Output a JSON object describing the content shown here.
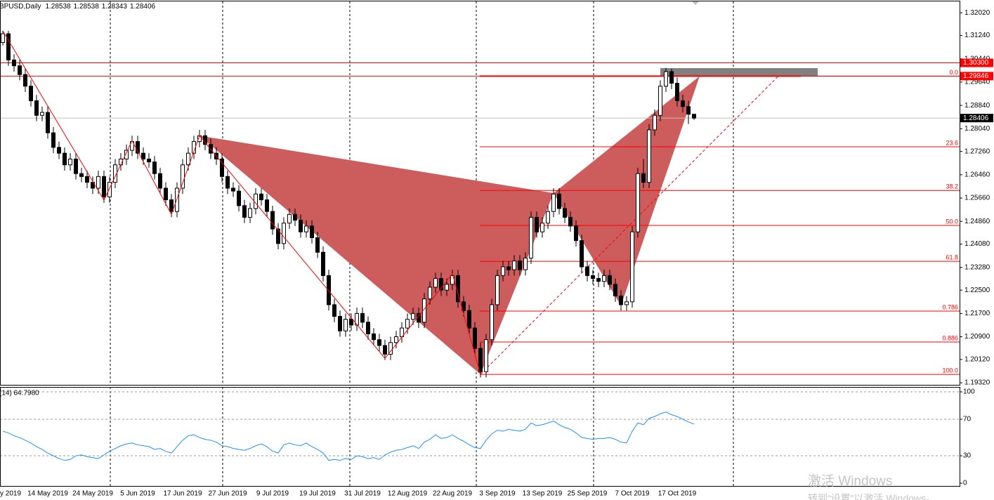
{
  "chart_data": {
    "type": "candlestick",
    "symbol": "BPUSD,Daily",
    "categories": [
      "y 2019",
      null,
      null,
      null,
      null,
      null,
      null,
      null,
      "14 May 2019",
      null,
      null,
      null,
      null,
      null,
      null,
      null,
      "24 May 2019",
      null,
      null,
      null,
      null,
      null,
      null,
      null,
      "5 Jun 2019",
      null,
      null,
      null,
      null,
      null,
      null,
      null,
      "17 Jun 2019",
      null,
      null,
      null,
      null,
      null,
      null,
      null,
      "27 Jun 2019",
      null,
      null,
      null,
      null,
      null,
      null,
      null,
      "9 Jul 2019",
      null,
      null,
      null,
      null,
      null,
      null,
      null,
      "19 Jul 2019",
      null,
      null,
      null,
      null,
      null,
      null,
      null,
      "31 Jul 2019",
      null,
      null,
      null,
      null,
      null,
      null,
      null,
      "12 Aug 2019",
      null,
      null,
      null,
      null,
      null,
      null,
      null,
      "22 Aug 2019",
      null,
      null,
      null,
      null,
      null,
      null,
      null,
      "3 Sep 2019",
      null,
      null,
      null,
      null,
      null,
      null,
      null,
      "13 Sep 2019",
      null,
      null,
      null,
      null,
      null,
      null,
      null,
      "25 Sep 2019",
      null,
      null,
      null,
      null,
      null,
      null,
      null,
      "7 Oct 2019",
      null,
      null,
      null,
      null,
      null,
      null,
      null,
      "17 Oct 2019",
      null,
      null,
      null
    ],
    "open": [
      1.31,
      1.313,
      1.304,
      1.302,
      1.299,
      1.295,
      1.29,
      1.285,
      1.286,
      1.279,
      1.274,
      1.272,
      1.268,
      1.27,
      1.265,
      1.264,
      1.262,
      1.26,
      1.264,
      1.257,
      1.262,
      1.268,
      1.27,
      1.273,
      1.276,
      1.272,
      1.27,
      1.269,
      1.265,
      1.26,
      1.256,
      1.252,
      1.26,
      1.268,
      1.272,
      1.276,
      1.278,
      1.275,
      1.272,
      1.27,
      1.264,
      1.26,
      1.259,
      1.254,
      1.25,
      1.253,
      1.258,
      1.256,
      1.252,
      1.246,
      1.241,
      1.248,
      1.251,
      1.249,
      1.245,
      1.247,
      1.243,
      1.238,
      1.23,
      1.22,
      1.216,
      1.211,
      1.215,
      1.213,
      1.217,
      1.214,
      1.21,
      1.208,
      1.206,
      1.203,
      1.207,
      1.209,
      1.212,
      1.215,
      1.217,
      1.214,
      1.222,
      1.226,
      1.229,
      1.225,
      1.227,
      1.23,
      1.221,
      1.218,
      1.212,
      1.205,
      1.197,
      1.208,
      1.22,
      1.23,
      1.233,
      1.232,
      1.235,
      1.232,
      1.236,
      1.25,
      1.245,
      1.248,
      1.252,
      1.258,
      1.253,
      1.25,
      1.247,
      1.242,
      1.233,
      1.23,
      1.229,
      1.228,
      1.23,
      1.227,
      1.223,
      1.22,
      1.221,
      1.245,
      1.265,
      1.262,
      1.28,
      1.285,
      1.295,
      1.3,
      1.296,
      1.29,
      1.288,
      1.28538
    ],
    "high": [
      1.314,
      1.314,
      1.306,
      1.304,
      1.301,
      1.297,
      1.292,
      1.288,
      1.288,
      1.281,
      1.276,
      1.274,
      1.272,
      1.272,
      1.267,
      1.266,
      1.264,
      1.266,
      1.266,
      1.264,
      1.27,
      1.272,
      1.275,
      1.278,
      1.278,
      1.274,
      1.272,
      1.271,
      1.267,
      1.262,
      1.258,
      1.262,
      1.27,
      1.274,
      1.278,
      1.28,
      1.28,
      1.277,
      1.274,
      1.272,
      1.266,
      1.262,
      1.261,
      1.256,
      1.255,
      1.26,
      1.26,
      1.258,
      1.254,
      1.248,
      1.25,
      1.253,
      1.253,
      1.251,
      1.249,
      1.249,
      1.245,
      1.24,
      1.232,
      1.222,
      1.218,
      1.217,
      1.217,
      1.219,
      1.219,
      1.216,
      1.212,
      1.21,
      1.208,
      1.209,
      1.211,
      1.214,
      1.217,
      1.219,
      1.219,
      1.224,
      1.228,
      1.231,
      1.231,
      1.229,
      1.232,
      1.232,
      1.223,
      1.22,
      1.214,
      1.207,
      1.21,
      1.222,
      1.232,
      1.235,
      1.235,
      1.237,
      1.237,
      1.238,
      1.252,
      1.252,
      1.25,
      1.254,
      1.26,
      1.26,
      1.255,
      1.252,
      1.249,
      1.244,
      1.235,
      1.232,
      1.231,
      1.232,
      1.232,
      1.229,
      1.225,
      1.223,
      1.247,
      1.267,
      1.27,
      1.282,
      1.287,
      1.297,
      1.3013,
      1.301,
      1.298,
      1.292,
      1.29,
      1.28538
    ],
    "low": [
      1.309,
      1.302,
      1.3,
      1.297,
      1.293,
      1.288,
      1.283,
      1.283,
      1.277,
      1.272,
      1.27,
      1.266,
      1.266,
      1.263,
      1.262,
      1.26,
      1.258,
      1.258,
      1.255,
      1.255,
      1.26,
      1.266,
      1.268,
      1.271,
      1.27,
      1.268,
      1.267,
      1.263,
      1.258,
      1.254,
      1.25,
      1.25,
      1.258,
      1.266,
      1.27,
      1.274,
      1.273,
      1.27,
      1.268,
      1.262,
      1.258,
      1.257,
      1.252,
      1.248,
      1.248,
      1.251,
      1.254,
      1.25,
      1.244,
      1.239,
      1.239,
      1.246,
      1.247,
      1.243,
      1.243,
      1.241,
      1.236,
      1.228,
      1.218,
      1.214,
      1.209,
      1.209,
      1.211,
      1.211,
      1.212,
      1.208,
      1.206,
      1.204,
      1.201,
      1.201,
      1.205,
      1.207,
      1.21,
      1.213,
      1.212,
      1.212,
      1.22,
      1.224,
      1.223,
      1.223,
      1.225,
      1.219,
      1.216,
      1.21,
      1.203,
      1.195,
      1.195,
      1.206,
      1.218,
      1.228,
      1.23,
      1.23,
      1.23,
      1.23,
      1.234,
      1.243,
      1.243,
      1.246,
      1.25,
      1.251,
      1.248,
      1.245,
      1.24,
      1.231,
      1.228,
      1.227,
      1.226,
      1.226,
      1.225,
      1.221,
      1.218,
      1.218,
      1.219,
      1.243,
      1.26,
      1.26,
      1.278,
      1.283,
      1.293,
      1.294,
      1.288,
      1.286,
      1.282,
      1.28343
    ],
    "close": [
      1.313,
      1.304,
      1.302,
      1.299,
      1.295,
      1.29,
      1.285,
      1.286,
      1.279,
      1.274,
      1.272,
      1.268,
      1.27,
      1.265,
      1.264,
      1.262,
      1.26,
      1.264,
      1.257,
      1.262,
      1.268,
      1.27,
      1.273,
      1.276,
      1.272,
      1.27,
      1.269,
      1.265,
      1.26,
      1.256,
      1.252,
      1.26,
      1.268,
      1.272,
      1.276,
      1.278,
      1.275,
      1.272,
      1.27,
      1.264,
      1.26,
      1.259,
      1.254,
      1.25,
      1.253,
      1.258,
      1.256,
      1.252,
      1.246,
      1.241,
      1.248,
      1.251,
      1.249,
      1.245,
      1.247,
      1.243,
      1.238,
      1.23,
      1.22,
      1.216,
      1.211,
      1.215,
      1.213,
      1.217,
      1.214,
      1.21,
      1.208,
      1.206,
      1.203,
      1.207,
      1.209,
      1.212,
      1.215,
      1.217,
      1.214,
      1.222,
      1.226,
      1.229,
      1.225,
      1.227,
      1.23,
      1.221,
      1.218,
      1.212,
      1.205,
      1.197,
      1.208,
      1.22,
      1.23,
      1.233,
      1.232,
      1.235,
      1.232,
      1.236,
      1.25,
      1.245,
      1.248,
      1.252,
      1.258,
      1.253,
      1.25,
      1.247,
      1.242,
      1.233,
      1.23,
      1.229,
      1.228,
      1.23,
      1.227,
      1.223,
      1.22,
      1.221,
      1.245,
      1.265,
      1.262,
      1.28,
      1.285,
      1.295,
      1.3,
      1.296,
      1.29,
      1.288,
      1.28538,
      1.28406
    ],
    "ylim": [
      1.1925,
      1.3241
    ],
    "yticks": [
      {
        "value": 1.3202,
        "label": "1.32020"
      },
      {
        "value": 1.3124,
        "label": "1.31240"
      },
      {
        "value": 1.3044,
        "label": "1.30440"
      },
      {
        "value": 1.2964,
        "label": "1.29640"
      },
      {
        "value": 1.2884,
        "label": "1.28840"
      },
      {
        "value": 1.2804,
        "label": "1.28040"
      },
      {
        "value": 1.2726,
        "label": "1.27260"
      },
      {
        "value": 1.2646,
        "label": "1.26460"
      },
      {
        "value": 1.2566,
        "label": "1.25660"
      },
      {
        "value": 1.2486,
        "label": "1.24860"
      },
      {
        "value": 1.2408,
        "label": "1.24080"
      },
      {
        "value": 1.2328,
        "label": "1.23280"
      },
      {
        "value": 1.225,
        "label": "1.22500"
      },
      {
        "value": 1.217,
        "label": "1.21700"
      },
      {
        "value": 1.209,
        "label": "1.20900"
      },
      {
        "value": 1.2012,
        "label": "1.20120"
      },
      {
        "value": 1.1932,
        "label": "1.19320"
      }
    ],
    "hlines": [
      {
        "value": 1.303,
        "label": "1.30300",
        "color": "#ff0000"
      },
      {
        "value": 1.29846,
        "label": "1.29846",
        "color": "#ff0000"
      }
    ],
    "fibonacci": {
      "color": "#ff0000",
      "levels": [
        {
          "price": 1.29846,
          "text": "0.0"
        },
        {
          "price": 1.2742,
          "text": "23.6"
        },
        {
          "price": 1.2592,
          "text": "38.2"
        },
        {
          "price": 1.2472,
          "text": "50.0"
        },
        {
          "price": 1.2349,
          "text": "61.8"
        },
        {
          "price": 1.2178,
          "text": "0.786"
        },
        {
          "price": 1.2072,
          "text": "0.886"
        },
        {
          "price": 1.1961,
          "text": "100.0"
        }
      ]
    },
    "pattern": {
      "color": "#cd5c5c",
      "triangles": [
        {
          "x": [
            35,
            85,
            98
          ],
          "y": [
            1.278,
            1.1961,
            1.2583
          ]
        },
        {
          "x": [
            98,
            110,
            124
          ],
          "y": [
            1.2583,
            1.2197,
            1.29846
          ]
        }
      ]
    },
    "zigzag": {
      "color": "#ff0000",
      "x": [
        0,
        18,
        23,
        30,
        35,
        68,
        80,
        85
      ],
      "y": [
        1.314,
        1.2559,
        1.2763,
        1.251,
        1.278,
        1.2016,
        1.2306,
        1.1961
      ]
    },
    "trendline": {
      "color": "#ff0000",
      "x": [
        85,
        138
      ],
      "y": [
        1.1961,
        1.29846
      ]
    },
    "zone": {
      "color": "#808080",
      "x": [
        117,
        145
      ],
      "y": [
        1.29846,
        1.3012
      ]
    },
    "rsi": {
      "label": "(14) 64.7980",
      "color": "#1e90ff",
      "ylim": [
        -3.8,
        105.4
      ],
      "yticks": [
        100,
        70,
        30,
        0
      ],
      "values": [
        57,
        55,
        52,
        50,
        47,
        44,
        40,
        37,
        33,
        30,
        27,
        25,
        26,
        30,
        31,
        29,
        28,
        27,
        31,
        35,
        38,
        41,
        43,
        44,
        42,
        41,
        40,
        37,
        38,
        35,
        33,
        40,
        47,
        52,
        53,
        50,
        48,
        47,
        45,
        41,
        40,
        38,
        37,
        36,
        38,
        41,
        43,
        40,
        35,
        33,
        42,
        44,
        42,
        41,
        44,
        40,
        37,
        33,
        25,
        26,
        25,
        27,
        26,
        30,
        29,
        27,
        28,
        26,
        31,
        34,
        36,
        37,
        39,
        41,
        38,
        45,
        48,
        53,
        49,
        50,
        53,
        49,
        46,
        42,
        39,
        38,
        47,
        54,
        58,
        57,
        59,
        58,
        57,
        59,
        66,
        63,
        64,
        66,
        68,
        64,
        61,
        59,
        55,
        50,
        49,
        48,
        49,
        49,
        50,
        48,
        45,
        44,
        57,
        66,
        64,
        71,
        73,
        76,
        78,
        75,
        73,
        70,
        67,
        64.798
      ]
    },
    "watermark": [
      "激活 Windows",
      "转到“设置”以激活 Windows。"
    ]
  }
}
